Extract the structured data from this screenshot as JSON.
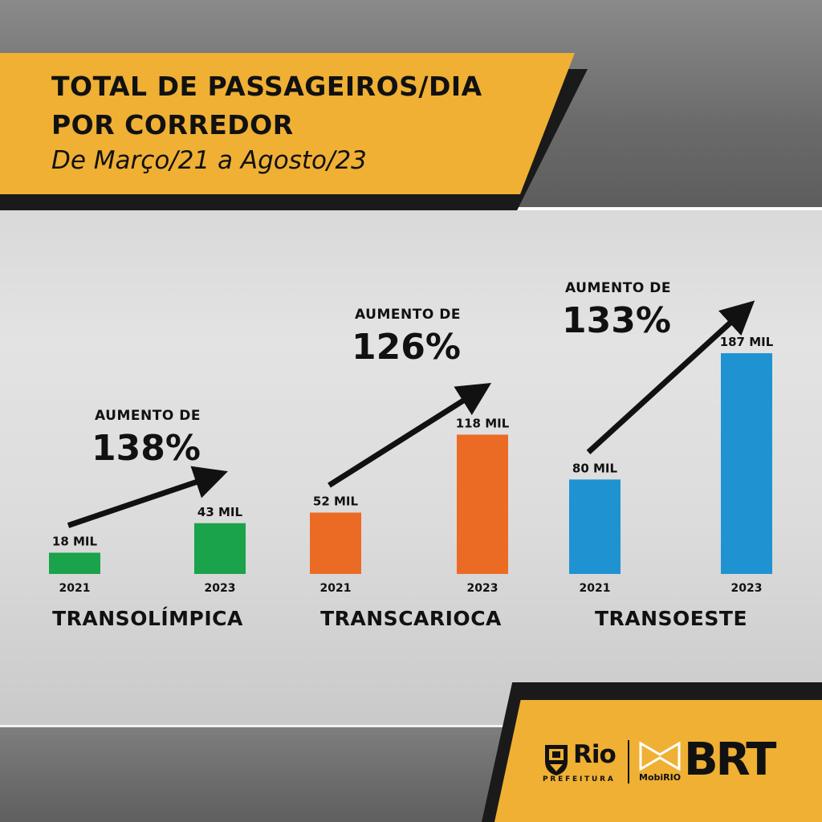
{
  "header": {
    "title_line1": "TOTAL DE PASSAGEIROS/DIA",
    "title_line2": "POR CORREDOR",
    "subtitle": "De Março/21 a Agosto/23"
  },
  "colors": {
    "banner": "#efb034",
    "green": "#1aa34a",
    "orange": "#ec6b24",
    "blue": "#1f93d2"
  },
  "chart_data": [
    {
      "type": "bar",
      "title": "TRANSOLÍMPICA",
      "categories": [
        "2021",
        "2023"
      ],
      "values": [
        18,
        43
      ],
      "value_labels": [
        "18 MIL",
        "43 MIL"
      ],
      "annotation": {
        "label": "AUMENTO DE",
        "value": "138%"
      },
      "color": "#1aa34a"
    },
    {
      "type": "bar",
      "title": "TRANSCARIOCA",
      "categories": [
        "2021",
        "2023"
      ],
      "values": [
        52,
        118
      ],
      "value_labels": [
        "52 MIL",
        "118 MIL"
      ],
      "annotation": {
        "label": "AUMENTO DE",
        "value": "126%"
      },
      "color": "#ec6b24"
    },
    {
      "type": "bar",
      "title": "TRANSOESTE",
      "categories": [
        "2021",
        "2023"
      ],
      "values": [
        80,
        187
      ],
      "value_labels": [
        "80 MIL",
        "187 MIL"
      ],
      "annotation": {
        "label": "AUMENTO DE",
        "value": "133%"
      },
      "color": "#1f93d2"
    }
  ],
  "footer": {
    "rio_text": "Rio",
    "prefeitura_text": "PREFEITURA",
    "mobirio_text": "MobiRIO",
    "brt_text": "BRT"
  }
}
